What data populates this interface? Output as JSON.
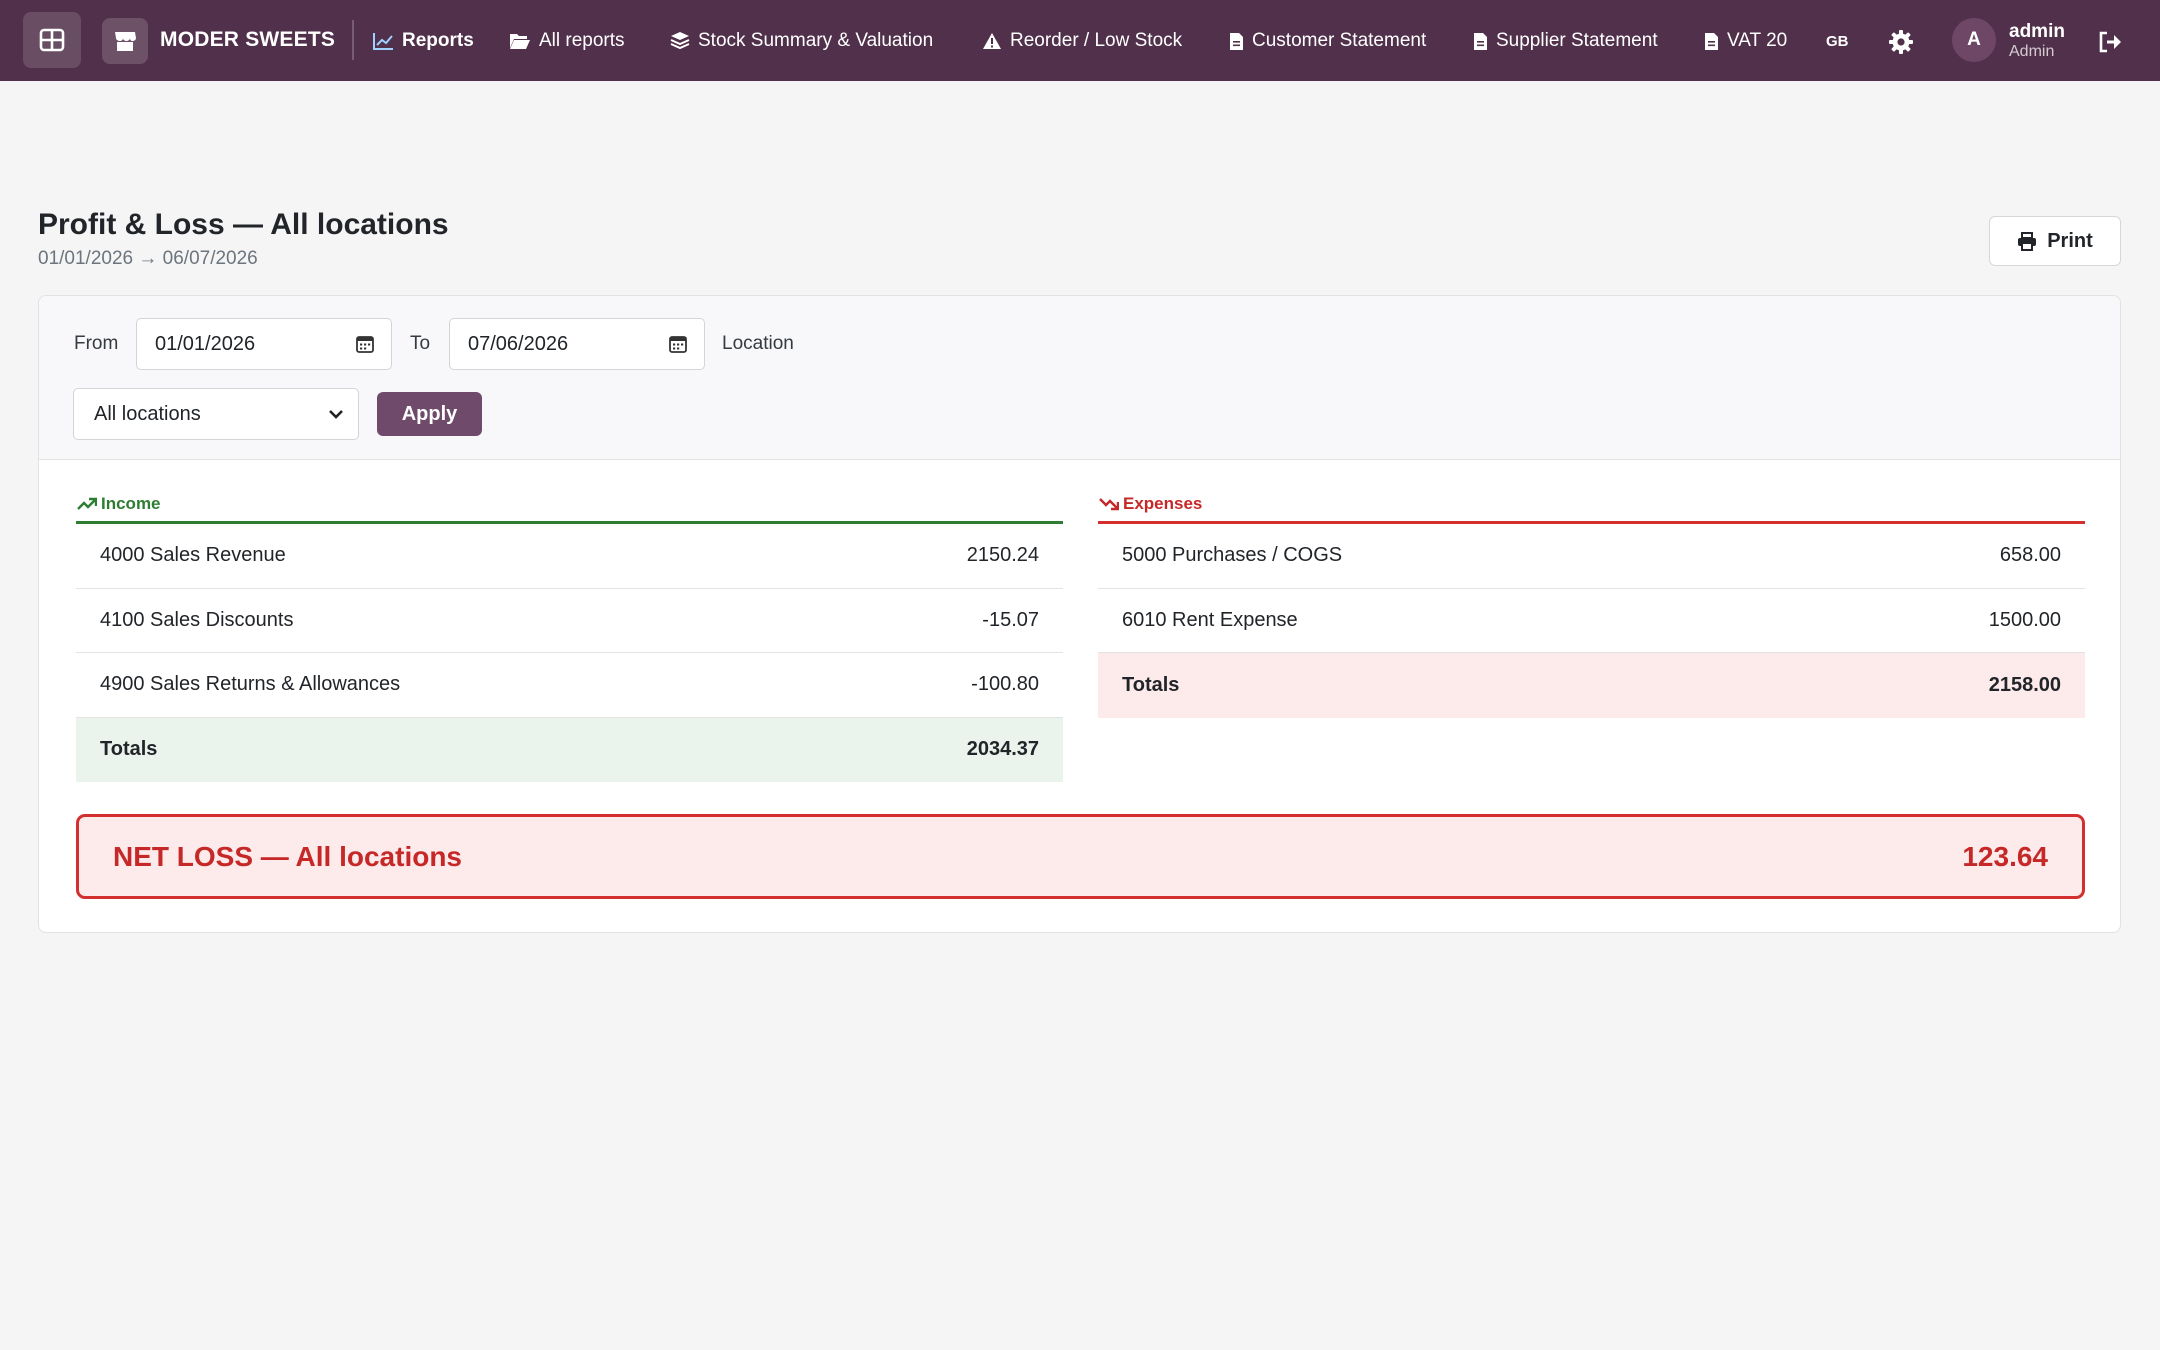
{
  "colors": {
    "nav_bg": "#50304a",
    "accent": "#6f4a6a",
    "income": "#2e7d32",
    "expenses": "#c62828"
  },
  "nav": {
    "brand": "MODER SWEETS",
    "items": [
      {
        "label": "Reports",
        "icon": "chart-line-icon",
        "active": true
      },
      {
        "label": "All reports",
        "icon": "folder-open-icon"
      },
      {
        "label": "Stock Summary & Valuation",
        "icon": "layers-icon"
      },
      {
        "label": "Reorder / Low Stock",
        "icon": "warning-icon"
      },
      {
        "label": "Customer Statement",
        "icon": "file-icon"
      },
      {
        "label": "Supplier Statement",
        "icon": "file-icon"
      },
      {
        "label": "VAT 20",
        "icon": "file-icon"
      }
    ],
    "lang": "GB",
    "user": {
      "initial": "A",
      "name": "admin",
      "role": "Admin"
    }
  },
  "page": {
    "title": "Profit & Loss — All locations",
    "subtitle": "01/01/2026 → 06/07/2026",
    "print_label": "Print"
  },
  "filters": {
    "from_label": "From",
    "from_value": "01/01/2026",
    "to_label": "To",
    "to_value": "07/06/2026",
    "location_label": "Location",
    "location_value": "All locations",
    "apply_label": "Apply"
  },
  "income": {
    "title": "Income",
    "rows": [
      {
        "account": "4000 Sales Revenue",
        "amount": "2150.24"
      },
      {
        "account": "4100 Sales Discounts",
        "amount": "-15.07"
      },
      {
        "account": "4900 Sales Returns & Allowances",
        "amount": "-100.80"
      }
    ],
    "total_label": "Totals",
    "total": "2034.37"
  },
  "expenses": {
    "title": "Expenses",
    "rows": [
      {
        "account": "5000 Purchases / COGS",
        "amount": "658.00"
      },
      {
        "account": "6010 Rent Expense",
        "amount": "1500.00"
      }
    ],
    "total_label": "Totals",
    "total": "2158.00"
  },
  "net": {
    "label": "NET LOSS — All locations",
    "value": "123.64"
  }
}
